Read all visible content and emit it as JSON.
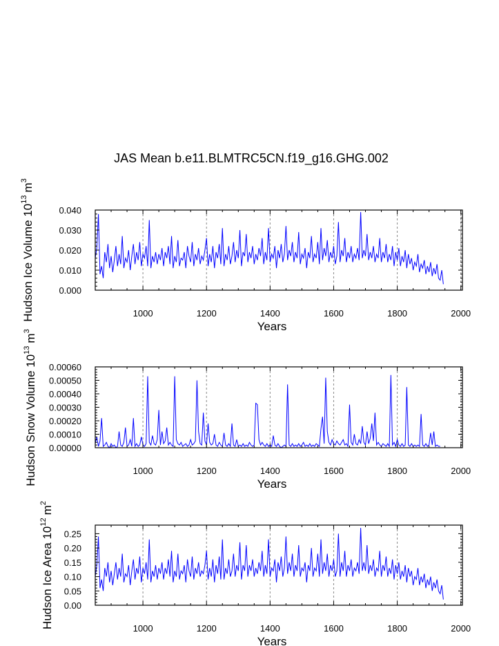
{
  "title": "JAS Mean b.e11.BLMTRC5CN.f19_g16.GHG.002",
  "colors": {
    "series": "#0000ff",
    "grid": "#888888",
    "frame": "#000000"
  },
  "chart_data": [
    {
      "type": "line",
      "name": "ice-volume",
      "ylabel": "Hudson Ice Volume 10",
      "ylabel_exp": "13",
      "ylabel_unit": "m",
      "ylabel_unit_exp": "3",
      "xlabel": "Years",
      "xlim": [
        850,
        2005
      ],
      "ylim": [
        0,
        0.04
      ],
      "xticks": [
        "1000",
        "1200",
        "1400",
        "1600",
        "1800",
        "2000"
      ],
      "yticks": [
        "0.000",
        "0.010",
        "0.020",
        "0.030",
        "0.040"
      ],
      "grid_x": [
        1000,
        1200,
        1400,
        1600,
        1800,
        2000
      ],
      "series": [
        {
          "name": "Hudson Ice Volume",
          "x_start": 850,
          "x_step": 5,
          "values": [
            0.016,
            0.021,
            0.038,
            0.008,
            0.012,
            0.006,
            0.019,
            0.014,
            0.023,
            0.011,
            0.017,
            0.009,
            0.015,
            0.022,
            0.012,
            0.018,
            0.013,
            0.027,
            0.011,
            0.016,
            0.014,
            0.02,
            0.01,
            0.017,
            0.023,
            0.013,
            0.019,
            0.015,
            0.024,
            0.012,
            0.018,
            0.016,
            0.022,
            0.012,
            0.035,
            0.011,
            0.017,
            0.014,
            0.019,
            0.013,
            0.018,
            0.015,
            0.021,
            0.012,
            0.019,
            0.016,
            0.022,
            0.013,
            0.027,
            0.011,
            0.017,
            0.014,
            0.025,
            0.012,
            0.016,
            0.015,
            0.019,
            0.011,
            0.022,
            0.017,
            0.014,
            0.024,
            0.012,
            0.018,
            0.015,
            0.021,
            0.013,
            0.017,
            0.015,
            0.02,
            0.026,
            0.012,
            0.018,
            0.014,
            0.022,
            0.011,
            0.019,
            0.016,
            0.023,
            0.013,
            0.031,
            0.012,
            0.018,
            0.015,
            0.022,
            0.013,
            0.017,
            0.024,
            0.014,
            0.02,
            0.016,
            0.03,
            0.012,
            0.019,
            0.017,
            0.028,
            0.014,
            0.019,
            0.016,
            0.022,
            0.013,
            0.018,
            0.015,
            0.021,
            0.017,
            0.026,
            0.013,
            0.019,
            0.015,
            0.031,
            0.014,
            0.018,
            0.016,
            0.022,
            0.011,
            0.02,
            0.016,
            0.023,
            0.014,
            0.018,
            0.032,
            0.015,
            0.02,
            0.017,
            0.024,
            0.014,
            0.019,
            0.016,
            0.029,
            0.013,
            0.018,
            0.016,
            0.021,
            0.011,
            0.019,
            0.016,
            0.027,
            0.014,
            0.018,
            0.016,
            0.024,
            0.013,
            0.031,
            0.015,
            0.021,
            0.017,
            0.025,
            0.014,
            0.019,
            0.016,
            0.022,
            0.013,
            0.017,
            0.034,
            0.014,
            0.02,
            0.017,
            0.026,
            0.014,
            0.019,
            0.016,
            0.022,
            0.014,
            0.018,
            0.016,
            0.021,
            0.015,
            0.039,
            0.016,
            0.02,
            0.017,
            0.028,
            0.015,
            0.019,
            0.016,
            0.022,
            0.014,
            0.018,
            0.016,
            0.026,
            0.014,
            0.019,
            0.016,
            0.023,
            0.014,
            0.018,
            0.015,
            0.022,
            0.012,
            0.019,
            0.015,
            0.021,
            0.012,
            0.017,
            0.014,
            0.02,
            0.011,
            0.018,
            0.013,
            0.016,
            0.01,
            0.014,
            0.012,
            0.018,
            0.009,
            0.013,
            0.011,
            0.015,
            0.008,
            0.012,
            0.009,
            0.014,
            0.007,
            0.011,
            0.008,
            0.013,
            0.006,
            0.005,
            0.01,
            0.003
          ]
        }
      ]
    },
    {
      "type": "line",
      "name": "snow-volume",
      "ylabel": "Hudson Snow Volume 10",
      "ylabel_exp": "13",
      "ylabel_unit": "m",
      "ylabel_unit_exp": "3",
      "xlabel": "Years",
      "xlim": [
        850,
        2005
      ],
      "ylim": [
        0,
        0.0006
      ],
      "xticks": [
        "1000",
        "1200",
        "1400",
        "1600",
        "1800",
        "2000"
      ],
      "yticks": [
        "0.00000",
        "0.00010",
        "0.00020",
        "0.00030",
        "0.00040",
        "0.00050",
        "0.00060"
      ],
      "grid_x": [
        1000,
        1200,
        1400,
        1600,
        1800,
        2000
      ],
      "series": [
        {
          "name": "Hudson Snow Volume",
          "x_start": 850,
          "x_step": 5,
          "values": [
            3e-05,
            8e-05,
            1e-05,
            5e-05,
            0.00022,
            1e-05,
            2e-05,
            4e-05,
            1e-05,
            0.0,
            3e-05,
            1e-05,
            2e-05,
            0.0,
            1e-05,
            0.00012,
            2e-05,
            1e-05,
            4e-05,
            0.00015,
            1e-05,
            2e-05,
            6e-05,
            1e-05,
            0.00022,
            1e-05,
            3e-05,
            1e-05,
            2e-05,
            8e-05,
            2e-05,
            1e-05,
            3e-05,
            0.00053,
            4e-05,
            2e-05,
            9e-05,
            3e-05,
            2e-05,
            6e-05,
            0.00028,
            2e-05,
            0.00012,
            3e-05,
            5e-05,
            0.00015,
            2e-05,
            4e-05,
            2e-05,
            1e-05,
            0.00053,
            6e-05,
            3e-05,
            2e-05,
            4e-05,
            1e-05,
            2e-05,
            3e-05,
            1e-05,
            2e-05,
            6e-05,
            2e-05,
            3e-05,
            5e-05,
            0.0005,
            0.00012,
            3e-05,
            2e-05,
            0.00026,
            5e-05,
            2e-05,
            0.00018,
            4e-05,
            2e-05,
            3e-05,
            0.0001,
            2e-05,
            1e-05,
            4e-05,
            2e-05,
            1e-05,
            0.00011,
            2e-05,
            1e-05,
            3e-05,
            1e-05,
            0.00018,
            2e-05,
            1e-05,
            6e-05,
            1e-05,
            2e-05,
            1e-05,
            3e-05,
            1e-05,
            2e-05,
            1e-05,
            4e-05,
            2e-05,
            1e-05,
            2e-05,
            0.00033,
            0.00032,
            6e-05,
            2e-05,
            4e-05,
            2e-05,
            1e-05,
            3e-05,
            1e-05,
            2e-05,
            1e-05,
            9e-05,
            2e-05,
            1e-05,
            3e-05,
            1e-05,
            0.0,
            1e-05,
            2e-05,
            1e-05,
            0.00047,
            2e-05,
            1e-05,
            3e-05,
            1e-05,
            2e-05,
            1e-05,
            3e-05,
            1e-05,
            2e-05,
            4e-05,
            1e-05,
            2e-05,
            1e-05,
            3e-05,
            1e-05,
            2e-05,
            1e-05,
            3e-05,
            2e-05,
            1e-05,
            0.00014,
            0.00023,
            3e-05,
            0.00052,
            0.00012,
            4e-05,
            2e-05,
            6e-05,
            3e-05,
            2e-05,
            5e-05,
            3e-05,
            2e-05,
            4e-05,
            6e-05,
            2e-05,
            3e-05,
            1e-05,
            0.00032,
            4e-05,
            2e-05,
            0.0001,
            3e-05,
            2e-05,
            6e-05,
            3e-05,
            0.00016,
            4e-05,
            2e-05,
            0.00012,
            3e-05,
            7e-05,
            0.00018,
            5e-05,
            0.00026,
            2e-05,
            4e-05,
            2e-05,
            1e-05,
            3e-05,
            2e-05,
            1e-05,
            3e-05,
            1e-05,
            0.00054,
            2e-05,
            4e-05,
            1e-05,
            6e-05,
            2e-05,
            1e-05,
            3e-05,
            1e-05,
            2e-05,
            0.00045,
            2e-05,
            1e-05,
            3e-05,
            1e-05,
            2e-05,
            1e-05,
            2e-05,
            1e-05,
            0.00025,
            2e-05,
            1e-05,
            3e-05,
            1e-05,
            2e-05,
            0.00011,
            2e-05,
            0.00012,
            1e-05,
            2e-05,
            1e-05,
            1e-05
          ]
        }
      ]
    },
    {
      "type": "line",
      "name": "ice-area",
      "ylabel": "Hudson Ice Area 10",
      "ylabel_exp": "12",
      "ylabel_unit": "m",
      "ylabel_unit_exp": "2",
      "xlabel": "Years",
      "xlim": [
        850,
        2005
      ],
      "ylim": [
        0,
        0.28
      ],
      "xticks": [
        "1000",
        "1200",
        "1400",
        "1600",
        "1800",
        "2000"
      ],
      "yticks": [
        "0.00",
        "0.05",
        "0.10",
        "0.15",
        "0.20",
        "0.25"
      ],
      "grid_x": [
        1000,
        1200,
        1400,
        1600,
        1800,
        2000
      ],
      "series": [
        {
          "name": "Hudson Ice Area",
          "x_start": 850,
          "x_step": 5,
          "values": [
            0.1,
            0.14,
            0.24,
            0.06,
            0.09,
            0.05,
            0.13,
            0.1,
            0.15,
            0.08,
            0.12,
            0.07,
            0.11,
            0.15,
            0.09,
            0.13,
            0.1,
            0.18,
            0.08,
            0.11,
            0.1,
            0.14,
            0.07,
            0.12,
            0.16,
            0.09,
            0.13,
            0.11,
            0.17,
            0.08,
            0.13,
            0.11,
            0.15,
            0.09,
            0.23,
            0.08,
            0.12,
            0.1,
            0.14,
            0.09,
            0.13,
            0.11,
            0.15,
            0.09,
            0.13,
            0.11,
            0.16,
            0.1,
            0.19,
            0.08,
            0.12,
            0.1,
            0.18,
            0.09,
            0.12,
            0.11,
            0.14,
            0.08,
            0.16,
            0.12,
            0.1,
            0.17,
            0.09,
            0.13,
            0.11,
            0.15,
            0.1,
            0.12,
            0.11,
            0.14,
            0.19,
            0.09,
            0.13,
            0.1,
            0.16,
            0.08,
            0.14,
            0.11,
            0.17,
            0.09,
            0.23,
            0.09,
            0.13,
            0.11,
            0.16,
            0.1,
            0.12,
            0.18,
            0.1,
            0.14,
            0.12,
            0.22,
            0.09,
            0.14,
            0.12,
            0.21,
            0.1,
            0.14,
            0.12,
            0.16,
            0.1,
            0.13,
            0.11,
            0.15,
            0.12,
            0.19,
            0.1,
            0.14,
            0.11,
            0.23,
            0.1,
            0.13,
            0.12,
            0.16,
            0.08,
            0.15,
            0.12,
            0.17,
            0.1,
            0.13,
            0.24,
            0.11,
            0.15,
            0.12,
            0.18,
            0.1,
            0.14,
            0.12,
            0.21,
            0.1,
            0.13,
            0.12,
            0.15,
            0.08,
            0.14,
            0.12,
            0.2,
            0.1,
            0.13,
            0.12,
            0.18,
            0.1,
            0.23,
            0.11,
            0.15,
            0.12,
            0.18,
            0.1,
            0.14,
            0.12,
            0.16,
            0.1,
            0.12,
            0.25,
            0.1,
            0.15,
            0.12,
            0.19,
            0.1,
            0.14,
            0.12,
            0.16,
            0.1,
            0.13,
            0.12,
            0.15,
            0.11,
            0.27,
            0.12,
            0.15,
            0.12,
            0.21,
            0.11,
            0.14,
            0.12,
            0.16,
            0.1,
            0.13,
            0.12,
            0.19,
            0.1,
            0.14,
            0.12,
            0.17,
            0.1,
            0.13,
            0.11,
            0.16,
            0.09,
            0.14,
            0.11,
            0.15,
            0.09,
            0.12,
            0.1,
            0.14,
            0.08,
            0.13,
            0.1,
            0.12,
            0.07,
            0.1,
            0.09,
            0.13,
            0.07,
            0.1,
            0.08,
            0.11,
            0.06,
            0.09,
            0.07,
            0.1,
            0.05,
            0.08,
            0.06,
            0.09,
            0.05,
            0.04,
            0.07,
            0.02
          ]
        }
      ]
    }
  ]
}
